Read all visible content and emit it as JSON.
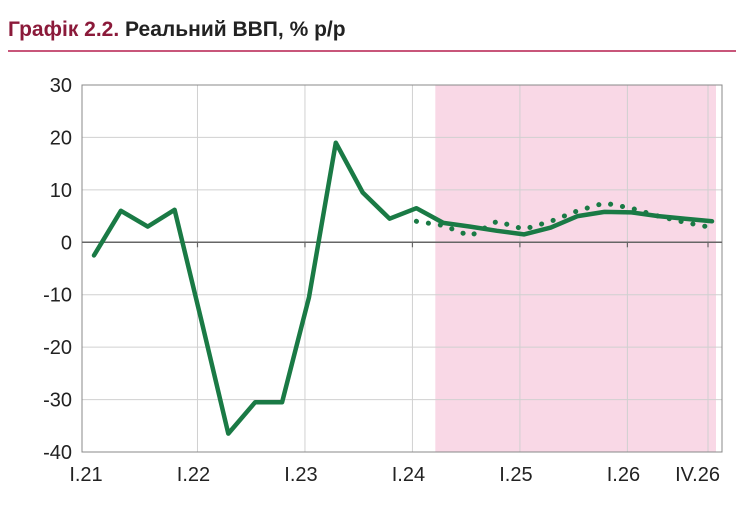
{
  "title": {
    "number": "Графік 2.2.",
    "text": "Реальний ВВП, % р/р"
  },
  "colors": {
    "title_number": "#8b1a3a",
    "line": "#1a7a45",
    "forecast_band": "#f9d8e6",
    "rule": "#c8567a"
  },
  "chart_data": {
    "type": "line",
    "title": "Реальний ВВП, % р/р",
    "xlabel": "",
    "ylabel": "",
    "ylim": [
      -40,
      30
    ],
    "yticks": [
      "30",
      "20",
      "10",
      "0",
      "-10",
      "-20",
      "-30",
      "-40"
    ],
    "x_range": [
      0,
      23
    ],
    "xticks": [
      {
        "x": 0,
        "label": "I.21"
      },
      {
        "x": 4,
        "label": "I.22"
      },
      {
        "x": 8,
        "label": "I.23"
      },
      {
        "x": 12,
        "label": "I.24"
      },
      {
        "x": 16,
        "label": "I.25"
      },
      {
        "x": 20,
        "label": "I.26"
      },
      {
        "x": 23,
        "label": "IV.26"
      }
    ],
    "forecast_band": [
      13,
      23
    ],
    "grid": true,
    "series": [
      {
        "style": "solid",
        "x": [
          0,
          1,
          2,
          3,
          4,
          5,
          6,
          7,
          8,
          9,
          10,
          11,
          12,
          13,
          14,
          15,
          16,
          17,
          18,
          19,
          20,
          21,
          22,
          23
        ],
        "values": [
          -2.5,
          6.0,
          3.0,
          6.2,
          -15.0,
          -36.5,
          -30.5,
          -30.5,
          -10.5,
          19.0,
          9.5,
          4.5,
          6.5,
          3.7,
          3.0,
          2.2,
          1.5,
          2.8,
          5.0,
          5.8,
          5.7,
          5.0,
          4.5,
          4.0
        ]
      },
      {
        "style": "dotted",
        "x": [
          12,
          13,
          14,
          15,
          16,
          17,
          18,
          19,
          20,
          21,
          22,
          23
        ],
        "values": [
          4.0,
          3.2,
          1.2,
          4.0,
          2.5,
          4.0,
          6.0,
          7.5,
          6.5,
          5.0,
          3.8,
          2.8
        ]
      }
    ]
  }
}
